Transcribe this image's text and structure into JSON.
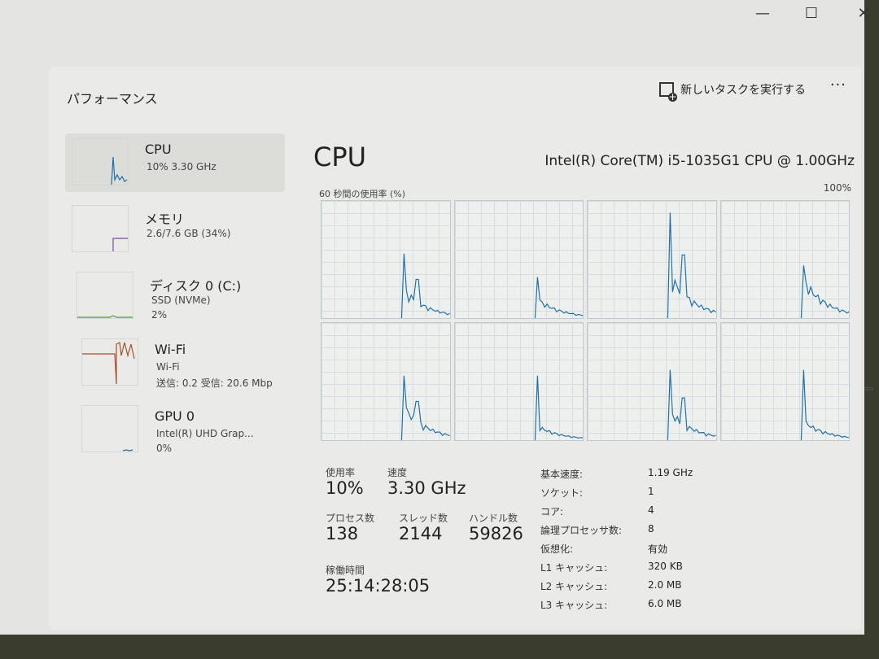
{
  "window": {
    "minimize": "—",
    "maximize": "☐",
    "close": "✕"
  },
  "header": {
    "title": "パフォーマンス",
    "run_task": "新しいタスクを実行する",
    "more": "···"
  },
  "sidebar": {
    "items": [
      {
        "name": "CPU",
        "line1": "10%  3.30 GHz",
        "line2": "",
        "color": "#1f6fa8",
        "selected": true
      },
      {
        "name": "メモリ",
        "line1": "2.6/7.6 GB (34%)",
        "line2": "",
        "color": "#7a4aa0"
      },
      {
        "name": "ディスク 0 (C:)",
        "line1": "SSD (NVMe)",
        "line2": "2%",
        "color": "#4f9a2a"
      },
      {
        "name": "Wi-Fi",
        "line1": "Wi-Fi",
        "line2": "送信: 0.2  受信: 20.6 Mbp",
        "color": "#a0522d"
      },
      {
        "name": "GPU 0",
        "line1": "Intel(R) UHD Grap...",
        "line2": "0%",
        "color": "#1f6fa8"
      }
    ]
  },
  "main": {
    "heading": "CPU",
    "model": "Intel(R) Core(TM) i5-1035G1 CPU @ 1.00GHz",
    "graph_label": "60 秒間の使用率 (%)",
    "graph_max": "100%",
    "logical_processors_graphs": 8,
    "stats": {
      "usage_label": "使用率",
      "usage": "10%",
      "speed_label": "速度",
      "speed": "3.30 GHz",
      "processes_label": "プロセス数",
      "processes": "138",
      "threads_label": "スレッド数",
      "threads": "2144",
      "handles_label": "ハンドル数",
      "handles": "59826",
      "uptime_label": "稼働時間",
      "uptime": "25:14:28:05"
    },
    "specs": [
      {
        "k": "基本速度:",
        "v": "1.19 GHz"
      },
      {
        "k": "ソケット:",
        "v": "1"
      },
      {
        "k": "コア:",
        "v": "4"
      },
      {
        "k": "論理プロセッサ数:",
        "v": "8"
      },
      {
        "k": "仮想化:",
        "v": "有効"
      },
      {
        "k": "L1 キャッシュ:",
        "v": "320 KB"
      },
      {
        "k": "L2 キャッシュ:",
        "v": "2.0 MB"
      },
      {
        "k": "L3 キャッシュ:",
        "v": "6.0 MB"
      }
    ]
  }
}
